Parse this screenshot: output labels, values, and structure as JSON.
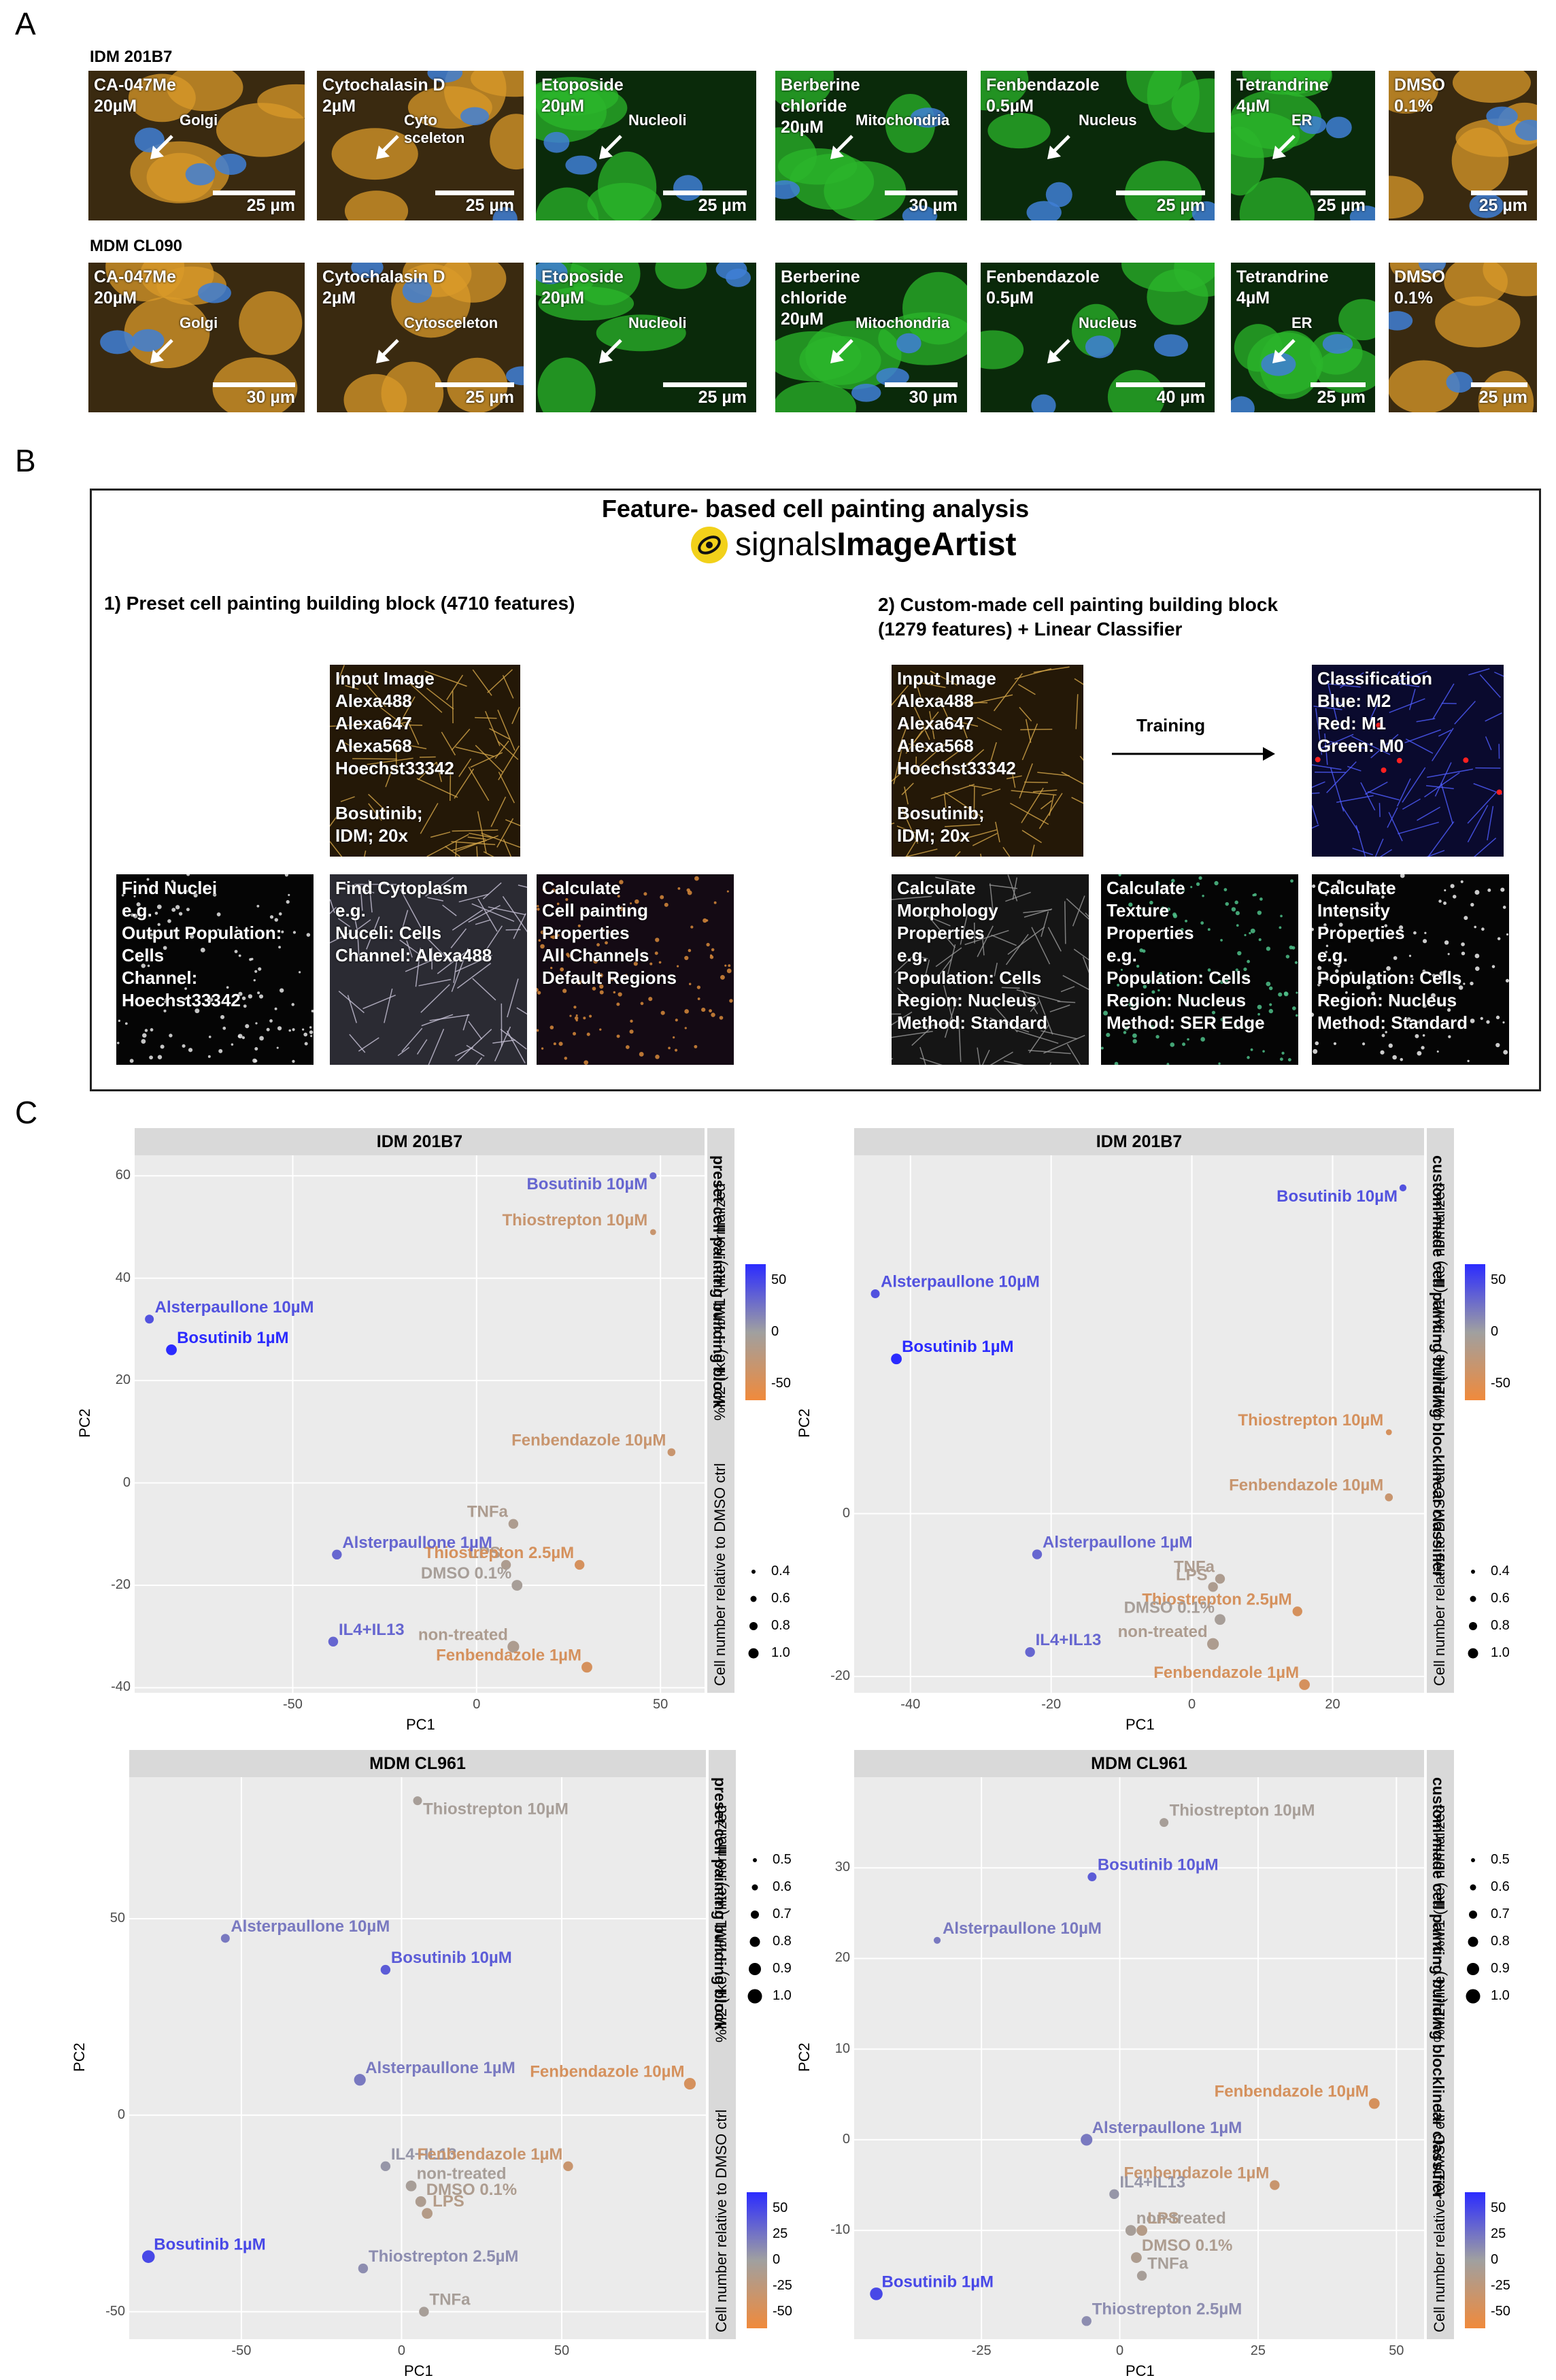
{
  "panel_labels": [
    "A",
    "B",
    "C"
  ],
  "panel_a": {
    "rows": [
      {
        "label": "IDM 201B7",
        "tiles": [
          {
            "text": "CA-047Me\n20µM",
            "annotation": "Golgi",
            "scale": "25 µm",
            "theme": "orange"
          },
          {
            "text": "Cytochalasin D\n2µM",
            "annotation": "Cyto\nsceleton",
            "scale": "25 µm",
            "theme": "orange"
          },
          {
            "text": "Etoposide\n20µM",
            "annotation": "Nucleoli",
            "scale": "25 µm",
            "theme": "green"
          },
          {
            "text": "Berberine\nchloride\n20µM",
            "annotation": "Mitochondria",
            "scale": "30 µm",
            "theme": "green"
          },
          {
            "text": "Fenbendazole\n0.5µM",
            "annotation": "Nucleus",
            "scale": "25 µm",
            "theme": "green"
          },
          {
            "text": "Tetrandrine\n4µM",
            "annotation": "ER",
            "scale": "25 µm",
            "theme": "green"
          },
          {
            "text": "DMSO\n0.1%",
            "annotation": "",
            "scale": "25 µm",
            "theme": "orange"
          }
        ]
      },
      {
        "label": "MDM CL090",
        "tiles": [
          {
            "text": "CA-047Me\n20µM",
            "annotation": "Golgi",
            "scale": "30 µm",
            "theme": "orange"
          },
          {
            "text": "Cytochalasin D\n2µM",
            "annotation": "Cytosceleton",
            "scale": "25 µm",
            "theme": "orange"
          },
          {
            "text": "Etoposide\n20µM",
            "annotation": "Nucleoli",
            "scale": "25 µm",
            "theme": "green"
          },
          {
            "text": "Berberine\nchloride\n20µM",
            "annotation": "Mitochondria",
            "scale": "30 µm",
            "theme": "green"
          },
          {
            "text": "Fenbendazole\n0.5µM",
            "annotation": "Nucleus",
            "scale": "40 µm",
            "theme": "green"
          },
          {
            "text": "Tetrandrine\n4µM",
            "annotation": "ER",
            "scale": "25 µm",
            "theme": "green"
          },
          {
            "text": "DMSO\n0.1%",
            "annotation": "",
            "scale": "25 µm",
            "theme": "orange"
          }
        ]
      }
    ]
  },
  "panel_b": {
    "title": "Feature- based cell painting analysis",
    "logo_text_light": "signals",
    "logo_text_bold": "ImageArtist",
    "section1_title": "1) Preset cell painting building block (4710 features)",
    "section2_title": "2) Custom-made cell painting building block\n(1279 features) + Linear Classifier",
    "input_image_1": "Input Image\nAlexa488\nAlexa647\nAlexa568\nHoechst33342\n\nBosutinib;\nIDM; 20x",
    "find_nuclei": "Find Nuclei\ne.g.\nOutput Population:\nCells\nChannel:\nHoechst33342",
    "find_cytoplasm": "Find Cytoplasm\ne.g.\nNuceli: Cells\nChannel: Alexa488",
    "calc_cp": "Calculate\nCell painting\nProperties\nAll Channels\nDefault Regions",
    "input_image_2": "Input Image\nAlexa488\nAlexa647\nAlexa568\nHoechst33342\n\nBosutinib;\nIDM; 20x",
    "training_label": "Training",
    "classification": "Classification\nBlue: M2\nRed: M1\nGreen: M0",
    "calc_morph": "Calculate\nMorphology\nProperties\ne.g.\nPopulation: Cells\nRegion: Nucleus\nMethod: Standard",
    "calc_texture": "Calculate\nTexture\nProperties\ne.g.\nPopulation: Cells\nRegion: Nucleus\nMethod: SER Edge",
    "calc_intensity": "Calculate\nIntensity\nProperties\ne.g.\nPopulation: Cells\nRegion: Nucleus\nMethod: Standard"
  },
  "panel_c": {
    "size_legend_title": "Cell number relative to DMSO ctrl",
    "color_legend_title": "%M2-(like) − %M1-(like) normalized",
    "color_legend_ticks": [
      "50",
      "0",
      "-50"
    ],
    "color_legend_ticks_mdm": [
      "50",
      "25",
      "0",
      "-25",
      "-50"
    ],
    "colors": {
      "high": "#2b2bff",
      "mid": "#a0a0a0",
      "low": "#f08a3c"
    }
  },
  "chart_data": [
    {
      "type": "scatter",
      "title": "IDM 201B7",
      "side_label": "preset cell painting building block",
      "xlabel": "PC1",
      "ylabel": "PC2",
      "xlim": [
        -93,
        62
      ],
      "ylim": [
        -41,
        64
      ],
      "xticks": [
        -50,
        0,
        50
      ],
      "yticks": [
        -40,
        -20,
        0,
        20,
        40,
        60
      ],
      "size_legend": [
        "0.4",
        "0.6",
        "0.8",
        "1.0"
      ],
      "points": [
        {
          "label": "Bosutinib 10µM",
          "x": 48,
          "y": 60,
          "c": 30,
          "s": 0.3
        },
        {
          "label": "Thiostrepton 10µM",
          "x": 48,
          "y": 49,
          "c": -30,
          "s": 0.2
        },
        {
          "label": "Alsterpaullone 10µM",
          "x": -89,
          "y": 32,
          "c": 40,
          "s": 0.5
        },
        {
          "label": "Bosutinib 1µM",
          "x": -83,
          "y": 26,
          "c": 70,
          "s": 0.7
        },
        {
          "label": "Fenbendazole 10µM",
          "x": 53,
          "y": 6,
          "c": -30,
          "s": 0.4
        },
        {
          "label": "TNFa",
          "x": 10,
          "y": -8,
          "c": -10,
          "s": 0.6
        },
        {
          "label": "LPS",
          "x": 8,
          "y": -16,
          "c": -10,
          "s": 0.6
        },
        {
          "label": "Thiostrepton 2.5µM",
          "x": 28,
          "y": -16,
          "c": -40,
          "s": 0.6
        },
        {
          "label": "DMSO 0.1%",
          "x": 11,
          "y": -20,
          "c": -5,
          "s": 0.7
        },
        {
          "label": "Alsterpaullone 1µM",
          "x": -38,
          "y": -14,
          "c": 30,
          "s": 0.6
        },
        {
          "label": "IL4+IL13",
          "x": -39,
          "y": -31,
          "c": 30,
          "s": 0.6
        },
        {
          "label": "non-treated",
          "x": 10,
          "y": -32,
          "c": -10,
          "s": 0.8
        },
        {
          "label": "Fenbendazole 1µM",
          "x": 30,
          "y": -36,
          "c": -40,
          "s": 0.7
        }
      ]
    },
    {
      "type": "scatter",
      "title": "IDM 201B7",
      "side_label": "custom-made cell painting building blocklinear classifier",
      "xlabel": "PC1",
      "ylabel": "PC2",
      "xlim": [
        -48,
        33
      ],
      "ylim": [
        -22,
        44
      ],
      "xticks": [
        -40,
        -20,
        0,
        20
      ],
      "yticks": [
        -20,
        0
      ],
      "size_legend": [
        "0.4",
        "0.6",
        "0.8",
        "1.0"
      ],
      "points": [
        {
          "label": "Bosutinib 10µM",
          "x": 30,
          "y": 40,
          "c": 40,
          "s": 0.3
        },
        {
          "label": "Alsterpaullone 10µM",
          "x": -45,
          "y": 27,
          "c": 40,
          "s": 0.5
        },
        {
          "label": "Bosutinib 1µM",
          "x": -42,
          "y": 19,
          "c": 70,
          "s": 0.7
        },
        {
          "label": "Thiostrepton 10µM",
          "x": 28,
          "y": 10,
          "c": -40,
          "s": 0.2
        },
        {
          "label": "Fenbendazole 10µM",
          "x": 28,
          "y": 2,
          "c": -30,
          "s": 0.4
        },
        {
          "label": "Alsterpaullone 1µM",
          "x": -22,
          "y": -5,
          "c": 30,
          "s": 0.6
        },
        {
          "label": "TNFa",
          "x": 4,
          "y": -8,
          "c": -10,
          "s": 0.6
        },
        {
          "label": "LPS",
          "x": 3,
          "y": -9,
          "c": -10,
          "s": 0.6
        },
        {
          "label": "Thiostrepton 2.5µM",
          "x": 15,
          "y": -12,
          "c": -40,
          "s": 0.6
        },
        {
          "label": "DMSO 0.1%",
          "x": 4,
          "y": -13,
          "c": -5,
          "s": 0.7
        },
        {
          "label": "non-treated",
          "x": 3,
          "y": -16,
          "c": -10,
          "s": 0.8
        },
        {
          "label": "IL4+IL13",
          "x": -23,
          "y": -17,
          "c": 30,
          "s": 0.6
        },
        {
          "label": "Fenbendazole 1µM",
          "x": 16,
          "y": -21,
          "c": -40,
          "s": 0.7
        }
      ]
    },
    {
      "type": "scatter",
      "title": "MDM CL961",
      "side_label": "preset cell painting building block",
      "xlabel": "PC1",
      "ylabel": "PC2",
      "xlim": [
        -85,
        95
      ],
      "ylim": [
        -57,
        86
      ],
      "xticks": [
        -50,
        0,
        50
      ],
      "yticks": [
        -50,
        0,
        50
      ],
      "size_legend": [
        "0.5",
        "0.6",
        "0.7",
        "0.8",
        "0.9",
        "1.0"
      ],
      "points": [
        {
          "label": "Thiostrepton 10µM",
          "x": 5,
          "y": 80,
          "c": -5,
          "s": 0.5
        },
        {
          "label": "Alsterpaullone 10µM",
          "x": -55,
          "y": 45,
          "c": 20,
          "s": 0.5
        },
        {
          "label": "Bosutinib 10µM",
          "x": -5,
          "y": 37,
          "c": 35,
          "s": 0.6
        },
        {
          "label": "Fenbendazole 10µM",
          "x": 90,
          "y": 8,
          "c": -40,
          "s": 0.8
        },
        {
          "label": "Alsterpaullone 1µM",
          "x": -13,
          "y": 9,
          "c": 20,
          "s": 0.8
        },
        {
          "label": "IL4+IL13",
          "x": -5,
          "y": -13,
          "c": 5,
          "s": 0.6
        },
        {
          "label": "Fenbendazole 1µM",
          "x": 52,
          "y": -13,
          "c": -30,
          "s": 0.6
        },
        {
          "label": "non-treated",
          "x": 3,
          "y": -18,
          "c": -5,
          "s": 0.7
        },
        {
          "label": "DMSO 0.1%",
          "x": 6,
          "y": -22,
          "c": -10,
          "s": 0.7
        },
        {
          "label": "LPS",
          "x": 8,
          "y": -25,
          "c": -15,
          "s": 0.7
        },
        {
          "label": "Bosutinib 1µM",
          "x": -79,
          "y": -36,
          "c": 45,
          "s": 0.9
        },
        {
          "label": "Thiostrepton 2.5µM",
          "x": -12,
          "y": -39,
          "c": 10,
          "s": 0.6
        },
        {
          "label": "TNFa",
          "x": 7,
          "y": -50,
          "c": -5,
          "s": 0.6
        }
      ]
    },
    {
      "type": "scatter",
      "title": "MDM CL961",
      "side_label": "custom-made cell painting building blocklinear classifier",
      "xlabel": "PC1",
      "ylabel": "PC2",
      "xlim": [
        -48,
        55
      ],
      "ylim": [
        -22,
        40
      ],
      "xticks": [
        -25,
        0,
        25,
        50
      ],
      "yticks": [
        -10,
        0,
        10,
        20,
        30
      ],
      "size_legend": [
        "0.5",
        "0.6",
        "0.7",
        "0.8",
        "0.9",
        "1.0"
      ],
      "points": [
        {
          "label": "Thiostrepton 10µM",
          "x": 8,
          "y": 35,
          "c": -5,
          "s": 0.5
        },
        {
          "label": "Bosutinib 10µM",
          "x": -5,
          "y": 29,
          "c": 35,
          "s": 0.5
        },
        {
          "label": "Alsterpaullone 10µM",
          "x": -33,
          "y": 22,
          "c": 20,
          "s": 0.3
        },
        {
          "label": "Fenbendazole 10µM",
          "x": 46,
          "y": 4,
          "c": -40,
          "s": 0.7
        },
        {
          "label": "Alsterpaullone 1µM",
          "x": -6,
          "y": 0,
          "c": 20,
          "s": 0.8
        },
        {
          "label": "Fenbendazole 1µM",
          "x": 28,
          "y": -5,
          "c": -30,
          "s": 0.6
        },
        {
          "label": "IL4+IL13",
          "x": -1,
          "y": -6,
          "c": 5,
          "s": 0.6
        },
        {
          "label": "non-treated",
          "x": 2,
          "y": -10,
          "c": -5,
          "s": 0.7
        },
        {
          "label": "LPS",
          "x": 4,
          "y": -10,
          "c": -15,
          "s": 0.7
        },
        {
          "label": "DMSO 0.1%",
          "x": 3,
          "y": -13,
          "c": -10,
          "s": 0.7
        },
        {
          "label": "TNFa",
          "x": 4,
          "y": -15,
          "c": -5,
          "s": 0.6
        },
        {
          "label": "Bosutinib 1µM",
          "x": -44,
          "y": -17,
          "c": 45,
          "s": 0.9
        },
        {
          "label": "Thiostrepton 2.5µM",
          "x": -6,
          "y": -20,
          "c": 10,
          "s": 0.6
        }
      ]
    }
  ]
}
